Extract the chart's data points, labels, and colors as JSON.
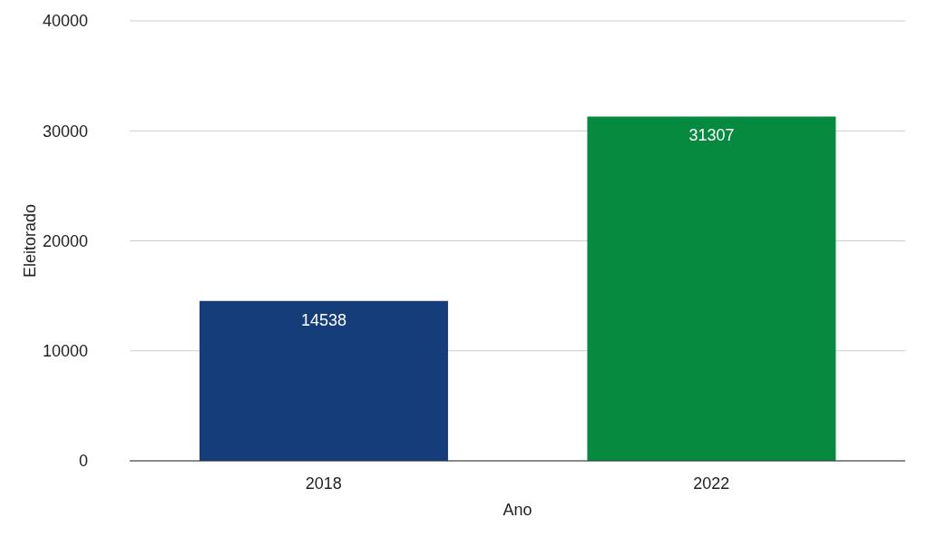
{
  "chart_data": {
    "type": "bar",
    "xlabel": "Ano",
    "ylabel": "Eleitorado",
    "categories": [
      "2018",
      "2022"
    ],
    "values": [
      14538,
      31307
    ],
    "colors": [
      "#153d7a",
      "#058a3f"
    ],
    "ylim": [
      0,
      40000
    ],
    "yticks": [
      0,
      10000,
      20000,
      30000,
      40000
    ],
    "grid": "y",
    "data_labels": true
  }
}
